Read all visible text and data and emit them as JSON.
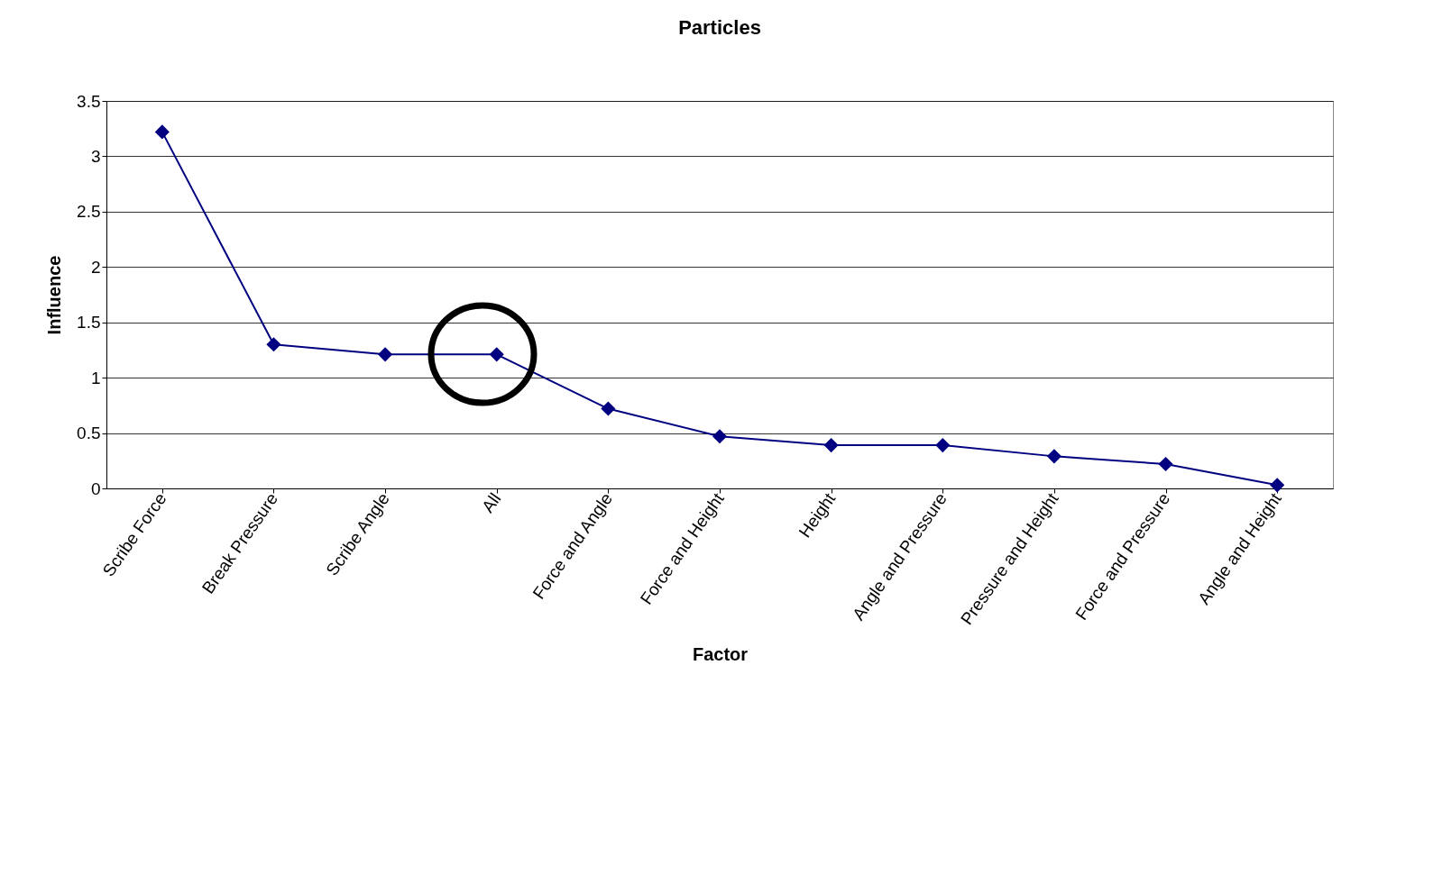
{
  "chart_data": {
    "type": "line",
    "title": "Particles",
    "xlabel": "Factor",
    "ylabel": "Influence",
    "categories": [
      "Scribe Force",
      "Break Pressure",
      "Scribe Angle",
      "All",
      "Force and Angle",
      "Force and Height",
      "Height",
      "Angle and Pressure",
      "Pressure and Height",
      "Force and Pressure",
      "Angle and Height"
    ],
    "series": [
      {
        "color": "#000080",
        "values": [
          3.22,
          1.3,
          1.21,
          1.21,
          0.72,
          0.47,
          0.39,
          0.39,
          0.29,
          0.22,
          0.03
        ]
      }
    ],
    "ylim": [
      0,
      3.5
    ],
    "yticks": [
      0,
      0.5,
      1,
      1.5,
      2,
      2.5,
      3,
      3.5
    ],
    "grid": "y",
    "marker": "diamond",
    "line_style": "solid"
  }
}
